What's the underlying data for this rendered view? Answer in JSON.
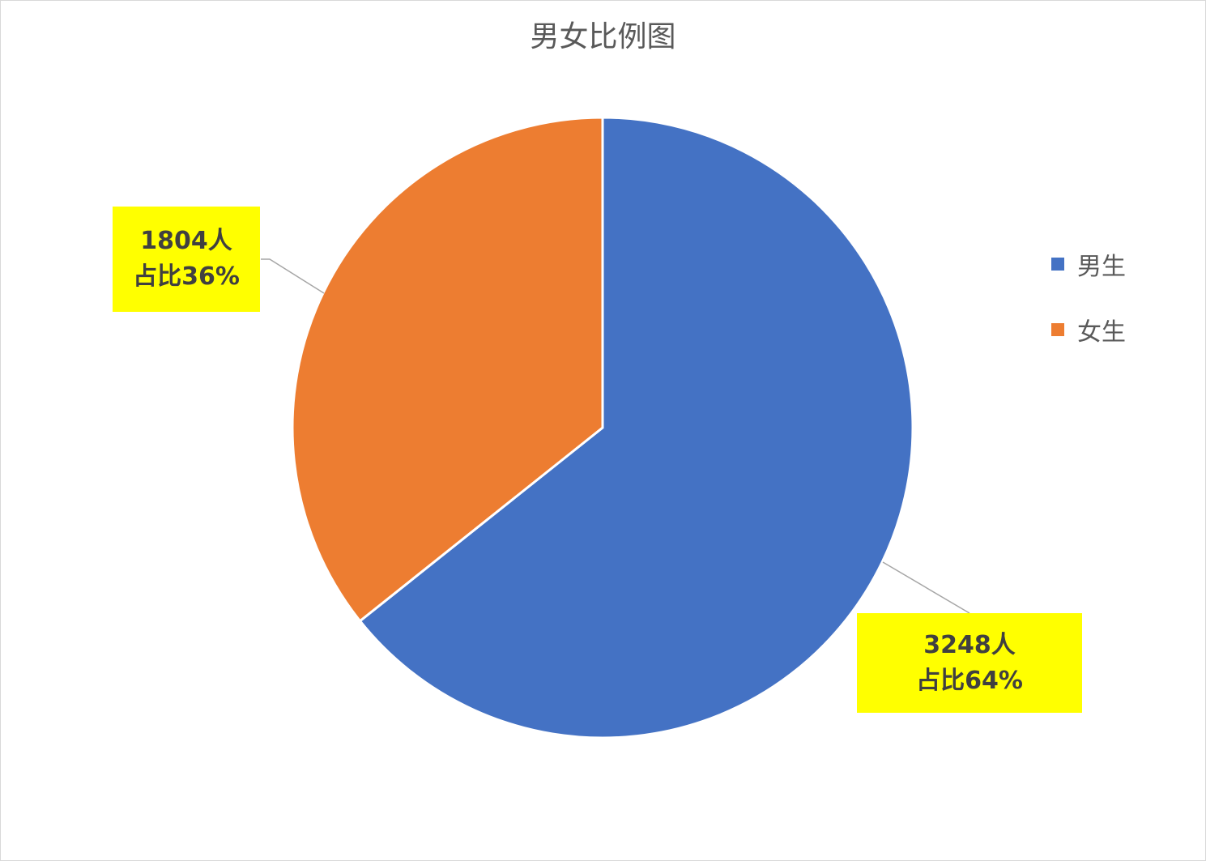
{
  "chart_data": {
    "type": "pie",
    "title": "男女比例图",
    "categories": [
      "男生",
      "女生"
    ],
    "values": [
      3248,
      1804
    ],
    "percent_labels": [
      "占比64%",
      "占比36%"
    ],
    "count_labels": [
      "3248人",
      "1804人"
    ],
    "colors": [
      "#4472c4",
      "#ed7d31"
    ],
    "label_background": "#ffff00",
    "legend_position": "right",
    "start_angle": "top, clockwise"
  }
}
